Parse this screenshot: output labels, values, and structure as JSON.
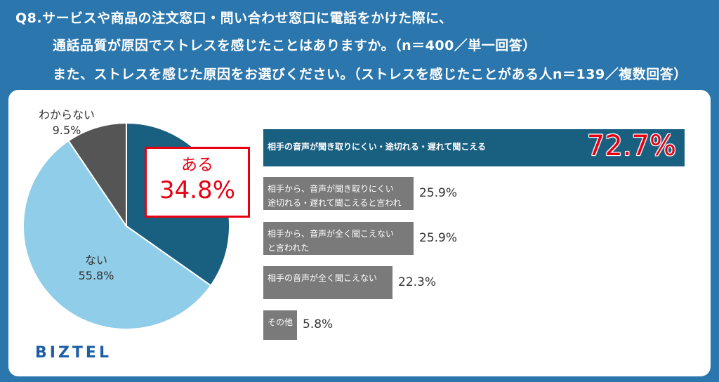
{
  "header": {
    "line1": "Q8.サービスや商品の注文窓口・問い合わせ窓口に電話をかけた際に、",
    "line2": "通話品質が原因でストレスを感じたことはありますか。（n＝400／単一回答）",
    "line3": "また、ストレスを感じた原因をお選びください。（ストレスを感じたことがある人n＝139／複数回答）"
  },
  "callout": {
    "label": "ある",
    "value": "34.8%"
  },
  "brand": "BIZTEL",
  "colors": {
    "background": "#2a76ad",
    "aru": "#195f80",
    "nai": "#8fcde8",
    "wakaranai": "#555555",
    "bar_top": "#195f80",
    "bar_gray": "#7a7a7a",
    "highlight": "#e60012"
  },
  "chart_data": [
    {
      "type": "pie",
      "slices": [
        {
          "label": "ある",
          "value": 34.8,
          "display": "34.8%",
          "color": "#195f80"
        },
        {
          "label": "ない",
          "value": 55.8,
          "display": "55.8%",
          "color": "#8fcde8"
        },
        {
          "label": "わからない",
          "value": 9.5,
          "display": "9.5%",
          "color": "#555555"
        }
      ]
    },
    {
      "type": "bar",
      "orientation": "horizontal",
      "categories": [
        "相手の音声が聞き取りにくい・途切れる・遅れて聞こえる",
        "相手から、音声が聞き取りにくい・途切れる・遅れて聞こえると言われた",
        "相手から、音声が全く聞こえないと言われた",
        "相手の音声が全く聞こえない",
        "その他"
      ],
      "category_lines": [
        [
          "相手の音声が聞き取りにくい・途切れる・遅れて聞こえる"
        ],
        [
          "相手から、音声が聞き取りにくい",
          "途切れる・遅れて聞こえると言われた"
        ],
        [
          "相手から、音声が全く聞こえない",
          "と言われた"
        ],
        [
          "相手の音声が全く聞こえない"
        ],
        [
          "その他"
        ]
      ],
      "values": [
        72.7,
        25.9,
        25.9,
        22.3,
        5.8
      ],
      "value_labels": [
        "72.7%",
        "25.9%",
        "25.9%",
        "22.3%",
        "5.8%"
      ],
      "xlim": [
        0,
        100
      ]
    }
  ]
}
